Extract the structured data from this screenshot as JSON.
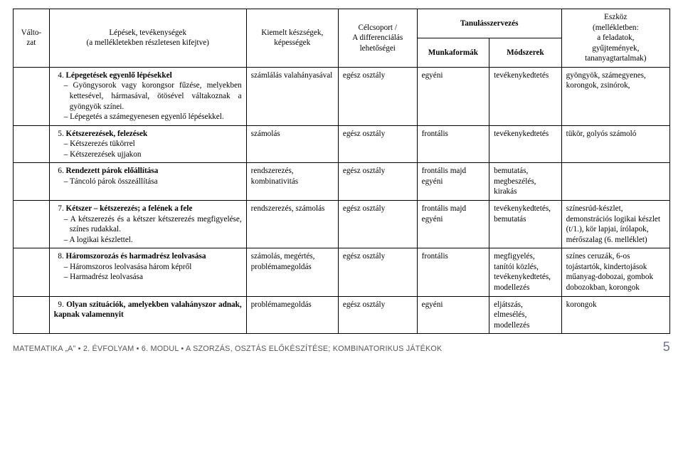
{
  "header": {
    "col0_l1": "Válto-",
    "col0_l2": "zat",
    "col1_l1": "Lépések, tevékenységek",
    "col1_l2": "(a mellékletekben részletesen kifejtve)",
    "col2_l1": "Kiemelt készségek,",
    "col2_l2": "képességek",
    "col3_l1": "Célcsoport /",
    "col3_l2": "A differenciálás",
    "col3_l3": "lehetőségei",
    "col45": "Tanulásszervezés",
    "col4": "Munkaformák",
    "col5": "Módszerek",
    "col6_l1": "Eszköz",
    "col6_l2": "(mellékletben:",
    "col6_l3": "a feladatok,",
    "col6_l4": "gyűjtemények,",
    "col6_l5": "tananyagtartalmak)"
  },
  "rows": [
    {
      "num": "4.",
      "title": "Lépegetések egyenlő lépésekkel",
      "subs": [
        "Gyöngysorok vagy korongsor fűzése, melyekben kettesével, hármasával, ötösével váltakoznak a gyöngyök színei.",
        "Lépegetés a számegyenesen egyenlő lépésekkel."
      ],
      "c2": "számlálás valahányasával",
      "c3": "egész osztály",
      "c4": "egyéni",
      "c5": "tevékenykedtetés",
      "c6": "gyöngyök, számegyenes, korongok, zsinórok,"
    },
    {
      "num": "5.",
      "title": "Kétszerezések, felezések",
      "subs": [
        "Kétszerezés tükörrel",
        "Kétszerezések ujjakon"
      ],
      "c2": "számolás",
      "c3": "egész osztály",
      "c4": "frontális",
      "c5": "tevékenykedtetés",
      "c6": "tükör, golyós számoló"
    },
    {
      "num": "6.",
      "title": "Rendezett párok előállítása",
      "subs": [
        "Táncoló párok összeállítása"
      ],
      "c2": "rendszerezés, kombinativitás",
      "c3": "egész osztály",
      "c4": "frontális majd egyéni",
      "c5": "bemutatás, megbeszélés, kirakás",
      "c6": ""
    },
    {
      "num": "7.",
      "title": "Kétszer – kétszerezés; a felének a fele",
      "subs": [
        "A kétszerezés és a kétszer kétszerezés megfigyelése, színes rudakkal.",
        "A logikai készlettel."
      ],
      "c2": "rendszerezés, számolás",
      "c3": "egész osztály",
      "c4": "frontális majd egyéni",
      "c5": "tevékenykedtetés, bemutatás",
      "c6": "színesrúd-készlet, demonstrációs logikai készlet (t/1.), kör lapjai, írólapok, mérőszalag (6. melléklet)"
    },
    {
      "num": "8.",
      "title": "Háromszorozás és harmadrész leolvasása",
      "subs": [
        "Háromszoros leolvasása három képről",
        "Harmadrész leolvasása"
      ],
      "c2": "számolás, megértés, problémamegoldás",
      "c3": "egész osztály",
      "c4": "frontális",
      "c5": "megfigyelés, tanítói közlés, tevékenykedtetés, modellezés",
      "c6": "színes ceruzák, 6-os tojástartók, kindertojások műanyag-dobozai, gombok dobozokban, korongok"
    },
    {
      "num": "9.",
      "title": "Olyan szituációk, amelyekben valahányszor adnak, kapnak valamennyit",
      "subs": [],
      "c2": "problémamegoldás",
      "c3": "egész osztály",
      "c4": "egyéni",
      "c5": "eljátszás, elmesélés, modellezés",
      "c6": "korongok"
    }
  ],
  "footer": {
    "brand": "MATEMATIKA „A”",
    "grade": "2. ÉVFOLYAM",
    "module": "6. MODUL",
    "title": "A SZORZÁS, OSZTÁS ELŐKÉSZÍTÉSE; KOMBINATORIKUS JÁTÉKOK",
    "page": "5"
  }
}
